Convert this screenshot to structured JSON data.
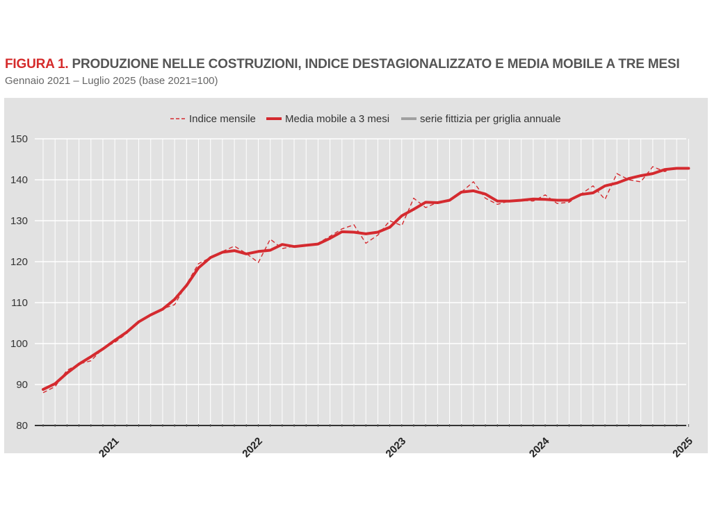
{
  "figure": {
    "label": "FIGURA 1.",
    "title": "PRODUZIONE NELLE COSTRUZIONI, INDICE DESTAGIONALIZZATO E MEDIA MOBILE A TRE MESI",
    "subtitle": "Gennaio 2021 – Luglio 2025 (base 2021=100)"
  },
  "chart_data": {
    "type": "line",
    "title": "PRODUZIONE NELLE COSTRUZIONI, INDICE DESTAGIONALIZZATO E MEDIA MOBILE A TRE MESI",
    "subtitle": "Gennaio 2021 – Luglio 2025 (base 2021=100)",
    "x_start": "2021-01",
    "x_end": "2025-07",
    "x_tick_labels": [
      "2021",
      "2022",
      "2023",
      "2024",
      "2025"
    ],
    "ylim": [
      80,
      150
    ],
    "yticks": [
      80,
      90,
      100,
      110,
      120,
      130,
      140,
      150
    ],
    "grid": true,
    "legend_position": "top-center",
    "colors": {
      "series": "#d42a2f",
      "baseline": "#333333",
      "grid": "#ffffff",
      "background": "#e2e2e2"
    },
    "legend": [
      {
        "name": "Indice mensile",
        "style": "dashed"
      },
      {
        "name": "Media mobile a 3 mesi",
        "style": "solid-thick"
      },
      {
        "name": "serie fittizia per griglia annuale",
        "style": "solid-gray"
      }
    ],
    "series": [
      {
        "name": "Indice mensile",
        "values": [
          88.0,
          89.5,
          93.5,
          95.0,
          95.8,
          98.8,
          100.3,
          102.5,
          105.5,
          107.2,
          108.5,
          109.5,
          114.5,
          119.5,
          121.0,
          122.5,
          123.8,
          122.0,
          119.8,
          125.5,
          123.2,
          123.8,
          124.0,
          124.5,
          126.2,
          128.0,
          129.0,
          124.5,
          126.5,
          130.0,
          128.8,
          135.5,
          133.2,
          134.5,
          135.2,
          137.0,
          139.5,
          135.5,
          134.0,
          134.8,
          135.0,
          134.8,
          136.3,
          134.2,
          134.5,
          136.5,
          138.5,
          135.2,
          141.5,
          140.0,
          139.5,
          143.2,
          142.0,
          143.0,
          142.5
        ]
      },
      {
        "name": "Media mobile a 3 mesi",
        "values": [
          88.8,
          90.2,
          92.8,
          95.0,
          96.8,
          98.7,
          100.8,
          102.8,
          105.3,
          107.0,
          108.4,
          110.8,
          114.2,
          118.5,
          121.0,
          122.3,
          122.7,
          121.9,
          122.5,
          122.8,
          124.2,
          123.7,
          124.0,
          124.3,
          125.7,
          127.3,
          127.2,
          126.8,
          127.2,
          128.4,
          131.2,
          132.8,
          134.5,
          134.4,
          135.0,
          137.0,
          137.3,
          136.5,
          134.8,
          134.8,
          135.0,
          135.3,
          135.2,
          135.0,
          135.0,
          136.4,
          136.8,
          138.5,
          139.2,
          140.3,
          141.0,
          141.5,
          142.5,
          142.8,
          142.8
        ]
      }
    ]
  }
}
